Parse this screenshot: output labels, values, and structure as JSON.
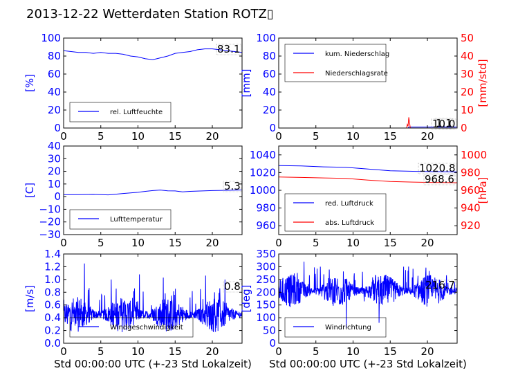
{
  "title": "2013-12-22 Wetterdaten Station ROTZ▯",
  "colors": {
    "blue": "#0000ff",
    "red": "#ff0000"
  },
  "chart_data": [
    {
      "type": "line",
      "panel": "top-left",
      "x_ticks": [
        "0",
        "5",
        "10",
        "15",
        "20"
      ],
      "xlim": [
        0,
        24
      ],
      "ylim": [
        0,
        100
      ],
      "y_ticks": [
        "0",
        "20",
        "40",
        "60",
        "80",
        "100"
      ],
      "ylabel": "[%]",
      "legend": [
        "rel. Luftfeuchte"
      ],
      "value_label": "83.1",
      "series": [
        {
          "name": "rel. Luftfeuchte",
          "color": "blue",
          "x": [
            0,
            1,
            2,
            3,
            4,
            5,
            6,
            7,
            8,
            9,
            10,
            11,
            12,
            13,
            14,
            15,
            16,
            17,
            18,
            19,
            20,
            21,
            22,
            23,
            24
          ],
          "y": [
            86,
            85,
            84,
            84,
            83,
            84,
            83,
            83,
            82,
            80,
            79,
            77,
            76,
            78,
            80,
            83,
            84,
            85,
            87,
            88,
            88,
            87,
            86,
            85,
            84
          ]
        }
      ]
    },
    {
      "type": "line",
      "panel": "top-right",
      "x_ticks": [
        "0",
        "5",
        "10",
        "15",
        "20"
      ],
      "xlim": [
        0,
        24
      ],
      "ylim": [
        0,
        100
      ],
      "y_ticks": [
        "0",
        "20",
        "40",
        "60",
        "80",
        "100"
      ],
      "ylabel": "[mm]",
      "y2lim": [
        0,
        50
      ],
      "y2_ticks": [
        "0",
        "10",
        "20",
        "30",
        "40",
        "50"
      ],
      "y2label": "[mm/std]",
      "legend": [
        "kum. Niederschlag",
        "Niederschlagsrate"
      ],
      "value_labels": [
        "10.0",
        "1.1"
      ],
      "series": [
        {
          "name": "kum. Niederschlag",
          "color": "blue",
          "axis": "left",
          "x": [
            0,
            17.4,
            17.5,
            24
          ],
          "y": [
            0,
            0,
            1.1,
            1.1
          ]
        },
        {
          "name": "Niederschlagsrate",
          "color": "red",
          "axis": "right",
          "x": [
            0,
            17.2,
            17.3,
            17.4,
            17.5,
            17.6,
            17.7,
            24
          ],
          "y": [
            0,
            0,
            2,
            1,
            6,
            3,
            0,
            0
          ]
        }
      ]
    },
    {
      "type": "line",
      "panel": "middle-left",
      "x_ticks": [
        "0",
        "5",
        "10",
        "15",
        "20"
      ],
      "xlim": [
        0,
        24
      ],
      "ylim": [
        -30,
        40
      ],
      "y_ticks": [
        "−30",
        "−20",
        "−10",
        "0",
        "10",
        "20",
        "30",
        "40"
      ],
      "ylabel": "[C]",
      "legend": [
        "Lufttemperatur"
      ],
      "value_label": "5.3",
      "series": [
        {
          "name": "Lufttemperatur",
          "color": "blue",
          "x": [
            0,
            2,
            4,
            6,
            8,
            10,
            11,
            12,
            13,
            14,
            15,
            16,
            17,
            18,
            20,
            22,
            24
          ],
          "y": [
            1.5,
            1.6,
            1.8,
            1.4,
            2.5,
            3.4,
            4.2,
            4.8,
            5.2,
            4.6,
            4.5,
            3.8,
            4.2,
            4.4,
            4.8,
            5.0,
            5.3
          ]
        }
      ]
    },
    {
      "type": "line",
      "panel": "middle-right",
      "x_ticks": [
        "0",
        "5",
        "10",
        "15",
        "20"
      ],
      "xlim": [
        0,
        24
      ],
      "ylim": [
        950,
        1050
      ],
      "y_ticks": [
        "960",
        "980",
        "1000",
        "1020",
        "1040"
      ],
      "y2lim": [
        910,
        1010
      ],
      "y2_ticks": [
        "920",
        "940",
        "960",
        "980",
        "1000"
      ],
      "y2label": "[hPa]",
      "legend": [
        "red. Luftdruck",
        "abs. Luftdruck"
      ],
      "value_labels": [
        "1020.8",
        "968.6"
      ],
      "series": [
        {
          "name": "red. Luftdruck",
          "color": "blue",
          "axis": "left",
          "x": [
            0,
            3,
            6,
            9,
            12,
            15,
            18,
            21,
            24
          ],
          "y": [
            1028,
            1027.5,
            1026.5,
            1026,
            1024,
            1022,
            1021.5,
            1021,
            1020.8
          ]
        },
        {
          "name": "abs. Luftdruck",
          "color": "red",
          "axis": "right",
          "x": [
            0,
            3,
            6,
            9,
            12,
            15,
            18,
            21,
            24
          ],
          "y": [
            975,
            974.5,
            974,
            973.5,
            971.5,
            970,
            969.3,
            968.8,
            968.6
          ]
        }
      ]
    },
    {
      "type": "line",
      "panel": "bottom-left",
      "x_ticks": [
        "0",
        "5",
        "10",
        "15",
        "20"
      ],
      "xlim": [
        0,
        24
      ],
      "ylim": [
        0,
        1.4
      ],
      "y_ticks": [
        "0.0",
        "0.2",
        "0.4",
        "0.6",
        "0.8",
        "1.0",
        "1.2",
        "1.4"
      ],
      "ylabel": "[m/s]",
      "xlabel": "Std 00:00:00 UTC (+-23 Std Lokalzeit)",
      "legend": [
        "Windgeschwindigkeit"
      ],
      "value_label": "0.8",
      "noise": {
        "base": 0.45,
        "amp": 0.28,
        "spikes": [
          [
            2.8,
            1.25
          ],
          [
            6.4,
            1.0
          ],
          [
            10.2,
            1.08
          ],
          [
            13.4,
            1.03
          ],
          [
            19.1,
            1.06
          ],
          [
            21.7,
            1.0
          ]
        ]
      },
      "series": [
        {
          "name": "Windgeschwindigkeit",
          "color": "blue"
        }
      ]
    },
    {
      "type": "line",
      "panel": "bottom-right",
      "x_ticks": [
        "0",
        "5",
        "10",
        "15",
        "20"
      ],
      "xlim": [
        0,
        24
      ],
      "ylim": [
        0,
        350
      ],
      "y_ticks": [
        "0",
        "50",
        "100",
        "150",
        "200",
        "250",
        "300",
        "350"
      ],
      "ylabel": "[deg]",
      "xlabel": "Std 00:00:00 UTC (+-23 Std Lokalzeit)",
      "legend": [
        "Windrichtung"
      ],
      "value_label": "216.7",
      "noise": {
        "base": 205,
        "amp": 65,
        "spikes": [
          [
            3.4,
            320
          ],
          [
            5.6,
            300
          ],
          [
            9.1,
            60
          ],
          [
            13.5,
            80
          ],
          [
            16.8,
            300
          ]
        ]
      },
      "series": [
        {
          "name": "Windrichtung",
          "color": "blue"
        }
      ]
    }
  ]
}
